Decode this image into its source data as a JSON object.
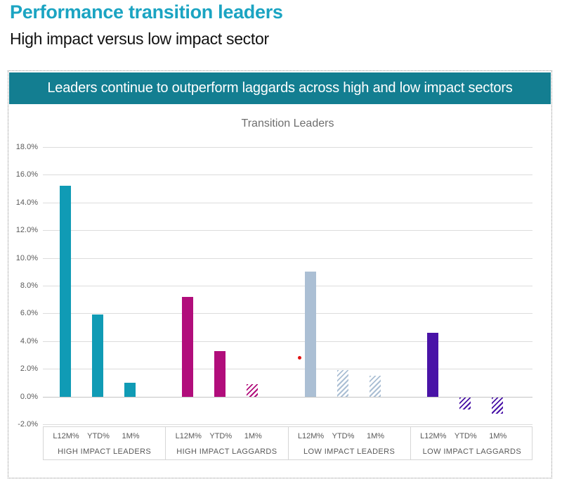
{
  "page": {
    "title": "Performance transition leaders",
    "subtitle": "High impact versus low impact sector",
    "banner": "Leaders continue to outperform laggards across high and low impact sectors"
  },
  "colors": {
    "title_teal": "#1ba4c2",
    "banner_bg": "#137e91",
    "banner_text": "#ffffff",
    "gridline": "#dcdcdc",
    "zero_line": "#c4c4c4",
    "axis_text": "#595959",
    "chart_title_text": "#6e6e6e",
    "red_dot": "#e01212"
  },
  "chart_data": {
    "type": "bar",
    "title": "Transition Leaders",
    "legend": "none",
    "grid": true,
    "y_axis": {
      "min": -2,
      "max": 18,
      "step": 2,
      "ticks": [
        "18.0%",
        "16.0%",
        "14.0%",
        "12.0%",
        "10.0%",
        "8.0%",
        "6.0%",
        "4.0%",
        "2.0%",
        "0.0%",
        "-2.0%"
      ]
    },
    "groups": [
      {
        "label": "HIGH IMPACT LEADERS",
        "color": "#109bb5",
        "bars": [
          {
            "label": "L12M%",
            "value": 15.2,
            "hatched": false
          },
          {
            "label": "YTD%",
            "value": 5.9,
            "hatched": false
          },
          {
            "label": "1M%",
            "value": 1.0,
            "hatched": false
          }
        ]
      },
      {
        "label": "HIGH IMPACT LAGGARDS",
        "color": "#b10d7b",
        "bars": [
          {
            "label": "L12M%",
            "value": 7.2,
            "hatched": false
          },
          {
            "label": "YTD%",
            "value": 3.3,
            "hatched": false
          },
          {
            "label": "1M%",
            "value": 0.9,
            "hatched": true
          }
        ]
      },
      {
        "label": "LOW IMPACT LEADERS",
        "color": "#abbfd4",
        "bars": [
          {
            "label": "L12M%",
            "value": 9.0,
            "hatched": false
          },
          {
            "label": "YTD%",
            "value": 1.9,
            "hatched": true
          },
          {
            "label": "1M%",
            "value": 1.5,
            "hatched": true
          }
        ]
      },
      {
        "label": "LOW IMPACT LAGGARDS",
        "color": "#4913a7",
        "bars": [
          {
            "label": "L12M%",
            "value": 4.6,
            "hatched": false
          },
          {
            "label": "YTD%",
            "value": -0.9,
            "hatched": true
          },
          {
            "label": "1M%",
            "value": -1.2,
            "hatched": true
          }
        ]
      }
    ],
    "outlier_point": {
      "value": 2.8,
      "x_fraction": 0.524,
      "color": "#e01212"
    }
  }
}
